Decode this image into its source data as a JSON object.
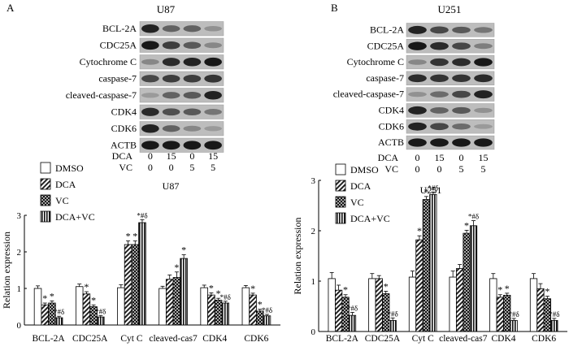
{
  "blots": [
    {
      "panel_label": "A",
      "title": "U87",
      "proteins": [
        "BCL-2A",
        "CDC25A",
        "Cytochrome C",
        "caspase-7",
        "cleaved-caspase-7",
        "CDK4",
        "CDK6",
        "ACTB"
      ],
      "intensity": [
        [
          0.9,
          0.55,
          0.55,
          0.3
        ],
        [
          0.95,
          0.75,
          0.6,
          0.35
        ],
        [
          0.35,
          0.85,
          0.9,
          0.95
        ],
        [
          0.7,
          0.75,
          0.75,
          0.8
        ],
        [
          0.25,
          0.55,
          0.6,
          0.9
        ],
        [
          0.85,
          0.65,
          0.6,
          0.45
        ],
        [
          0.9,
          0.55,
          0.35,
          0.25
        ],
        [
          0.95,
          0.95,
          0.95,
          0.95
        ]
      ],
      "conditions": [
        {
          "label": "DCA",
          "values": [
            "0",
            "15",
            "0",
            "15"
          ]
        },
        {
          "label": "VC",
          "values": [
            "0",
            "0",
            "5",
            "5"
          ]
        }
      ]
    },
    {
      "panel_label": "B",
      "title": "U251",
      "proteins": [
        "BCL-2A",
        "CDC25A",
        "Cytochrome C",
        "caspase-7",
        "cleaved-caspase-7",
        "CDK4",
        "CDK6",
        "ACTB"
      ],
      "intensity": [
        [
          0.9,
          0.7,
          0.6,
          0.45
        ],
        [
          0.95,
          0.85,
          0.7,
          0.4
        ],
        [
          0.35,
          0.8,
          0.85,
          0.95
        ],
        [
          0.85,
          0.8,
          0.8,
          0.85
        ],
        [
          0.3,
          0.5,
          0.7,
          0.9
        ],
        [
          0.9,
          0.55,
          0.6,
          0.3
        ],
        [
          0.9,
          0.7,
          0.5,
          0.25
        ],
        [
          0.95,
          0.95,
          0.95,
          0.95
        ]
      ],
      "conditions": [
        {
          "label": "DCA",
          "values": [
            "0",
            "15",
            "0",
            "15"
          ]
        },
        {
          "label": "VC",
          "values": [
            "0",
            "0",
            "5",
            "5"
          ]
        }
      ]
    }
  ],
  "chart_data": [
    {
      "type": "bar",
      "title": "U87",
      "ylabel": "Relation expression",
      "ylim": [
        0,
        3
      ],
      "yticks": [
        "0",
        "1",
        "2",
        "3"
      ],
      "categories": [
        "BCL-2A",
        "CDC25A",
        "Cyt C",
        "cleaved-cas7",
        "CDK4",
        "CDK6"
      ],
      "series": [
        {
          "name": "DMSO",
          "pattern": "white",
          "values": [
            1.0,
            1.05,
            1.02,
            1.0,
            1.02,
            1.02
          ],
          "errors": [
            0.07,
            0.07,
            0.08,
            0.06,
            0.07,
            0.06
          ]
        },
        {
          "name": "DCA",
          "pattern": "diag",
          "values": [
            0.55,
            0.85,
            2.2,
            1.25,
            0.82,
            0.82
          ],
          "errors": [
            0.05,
            0.06,
            0.1,
            0.12,
            0.06,
            0.05
          ]
        },
        {
          "name": "VC",
          "pattern": "cross",
          "values": [
            0.6,
            0.5,
            2.2,
            1.3,
            0.68,
            0.38
          ],
          "errors": [
            0.06,
            0.05,
            0.1,
            0.15,
            0.05,
            0.05
          ]
        },
        {
          "name": "DCA+VC",
          "pattern": "vert",
          "values": [
            0.2,
            0.22,
            2.8,
            1.82,
            0.6,
            0.25
          ],
          "errors": [
            0.04,
            0.04,
            0.08,
            0.1,
            0.05,
            0.04
          ]
        }
      ],
      "annotations": [
        [
          "",
          "*",
          "*",
          "*#δ"
        ],
        [
          "",
          "*",
          "*",
          "*#δ"
        ],
        [
          "",
          "*",
          "*",
          "*#δ"
        ],
        [
          "",
          "",
          "*",
          "*"
        ],
        [
          "",
          "*",
          "*",
          "*#δ"
        ],
        [
          "",
          "*",
          "*",
          "*#δ"
        ]
      ]
    },
    {
      "type": "bar",
      "title": "U251",
      "ylabel": "Relation expression",
      "ylim": [
        0,
        3
      ],
      "yticks": [
        "0",
        "1",
        "2",
        "3"
      ],
      "categories": [
        "BCL-2A",
        "CDC25A",
        "Cyt C",
        "cleaved-cas7",
        "CDK4",
        "CDK6"
      ],
      "series": [
        {
          "name": "DMSO",
          "pattern": "white",
          "values": [
            1.05,
            1.05,
            1.08,
            1.08,
            1.05,
            1.05
          ],
          "errors": [
            0.12,
            0.1,
            0.12,
            0.12,
            0.1,
            0.1
          ]
        },
        {
          "name": "DCA",
          "pattern": "diag",
          "values": [
            0.82,
            1.05,
            1.82,
            1.25,
            0.68,
            0.85
          ],
          "errors": [
            0.1,
            0.06,
            0.08,
            0.08,
            0.05,
            0.1
          ]
        },
        {
          "name": "VC",
          "pattern": "cross",
          "values": [
            0.68,
            0.75,
            2.62,
            1.95,
            0.72,
            0.65
          ],
          "errors": [
            0.05,
            0.05,
            0.06,
            0.06,
            0.04,
            0.05
          ]
        },
        {
          "name": "DCA+VC",
          "pattern": "vert",
          "values": [
            0.32,
            0.22,
            2.72,
            2.1,
            0.22,
            0.22
          ],
          "errors": [
            0.06,
            0.05,
            0.05,
            0.1,
            0.04,
            0.04
          ]
        }
      ],
      "annotations": [
        [
          "",
          "",
          "*",
          "*#δ"
        ],
        [
          "",
          "",
          "*",
          "*#δ"
        ],
        [
          "",
          "*",
          "*",
          "*#δ"
        ],
        [
          "",
          "",
          "*",
          "*#δ"
        ],
        [
          "",
          "*",
          "*",
          "*#δ"
        ],
        [
          "",
          "",
          "*",
          "*#δ"
        ]
      ]
    }
  ]
}
